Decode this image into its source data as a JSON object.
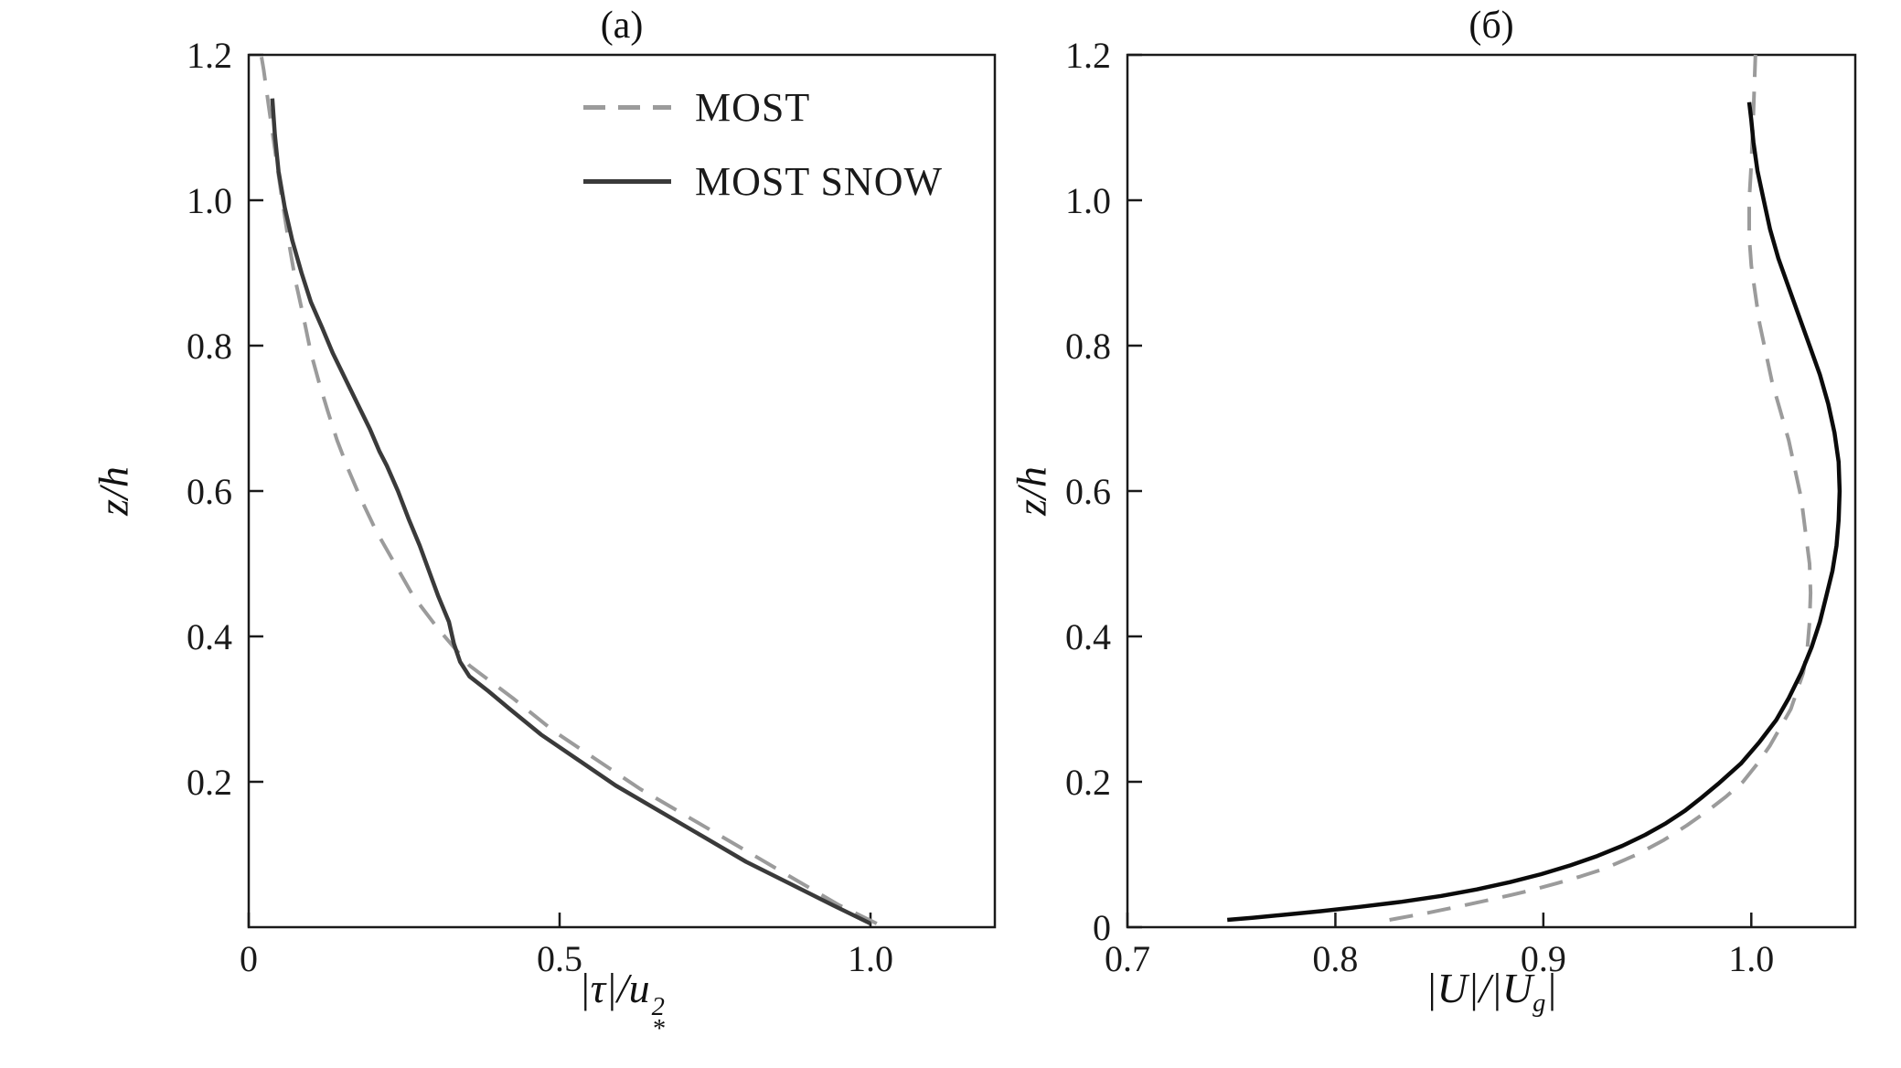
{
  "figure": {
    "background": "#ffffff",
    "frame_color": "#1a1a1a"
  },
  "chart_data": [
    {
      "type": "line",
      "title": "(a)",
      "xlabel": "|τ|/u*²",
      "xlabel_parts": {
        "pre": "|τ|/",
        "base": "u",
        "sup": "2",
        "sub": "*"
      },
      "ylabel": "z/h",
      "xlim": [
        0,
        1.2
      ],
      "ylim": [
        0,
        1.2
      ],
      "grid": false,
      "legend_position": "upper center inside",
      "xticks": [
        {
          "v": 0,
          "label": "0"
        },
        {
          "v": 0.5,
          "label": "0.5"
        },
        {
          "v": 1.0,
          "label": "1.0"
        }
      ],
      "yticks": [
        {
          "v": 0.2,
          "label": "0.2"
        },
        {
          "v": 0.4,
          "label": "0.4"
        },
        {
          "v": 0.6,
          "label": "0.6"
        },
        {
          "v": 0.8,
          "label": "0.8"
        },
        {
          "v": 1.0,
          "label": "1.0"
        },
        {
          "v": 1.2,
          "label": "1.2"
        }
      ],
      "series": [
        {
          "name": "MOST",
          "style": "dashed",
          "color": "#9b9b9b",
          "x": [
            1.01,
            0.95,
            0.87,
            0.79,
            0.71,
            0.63,
            0.56,
            0.49,
            0.425,
            0.355,
            0.305,
            0.265,
            0.235,
            0.205,
            0.18,
            0.16,
            0.142,
            0.127,
            0.113,
            0.1,
            0.088,
            0.075,
            0.063,
            0.052,
            0.042,
            0.032,
            0.024,
            0.02
          ],
          "y": [
            0.005,
            0.03,
            0.07,
            0.11,
            0.15,
            0.19,
            0.23,
            0.27,
            0.315,
            0.36,
            0.41,
            0.455,
            0.5,
            0.545,
            0.59,
            0.63,
            0.67,
            0.71,
            0.75,
            0.79,
            0.84,
            0.89,
            0.95,
            1.01,
            1.07,
            1.13,
            1.18,
            1.2
          ]
        },
        {
          "name": "MOST SNOW",
          "style": "solid",
          "color": "#3a3a3a",
          "x": [
            1.0,
            0.94,
            0.87,
            0.8,
            0.73,
            0.66,
            0.59,
            0.53,
            0.47,
            0.42,
            0.385,
            0.355,
            0.34,
            0.33,
            0.322,
            0.305,
            0.29,
            0.275,
            0.258,
            0.24,
            0.222,
            0.21,
            0.195,
            0.175,
            0.155,
            0.135,
            0.118,
            0.1,
            0.085,
            0.07,
            0.058,
            0.048,
            0.042,
            0.038
          ],
          "y": [
            0.005,
            0.03,
            0.06,
            0.09,
            0.125,
            0.16,
            0.195,
            0.23,
            0.265,
            0.3,
            0.325,
            0.345,
            0.365,
            0.39,
            0.42,
            0.455,
            0.49,
            0.525,
            0.56,
            0.6,
            0.635,
            0.655,
            0.685,
            0.72,
            0.755,
            0.79,
            0.825,
            0.86,
            0.9,
            0.945,
            0.99,
            1.04,
            1.09,
            1.14
          ]
        }
      ]
    },
    {
      "type": "line",
      "title": "(б)",
      "xlabel": "|U|/|Ug|",
      "xlabel_parts": {
        "p1": "|",
        "u1": "U",
        "p2": "|/|",
        "u2": "U",
        "sub": "g",
        "p3": "|"
      },
      "ylabel": "z/h",
      "xlim": [
        0.7,
        1.05
      ],
      "ylim": [
        0,
        1.2
      ],
      "grid": false,
      "legend_position": "none",
      "xticks": [
        {
          "v": 0.7,
          "label": "0.7"
        },
        {
          "v": 0.8,
          "label": "0.8"
        },
        {
          "v": 0.9,
          "label": "0.9"
        },
        {
          "v": 1.0,
          "label": "1.0"
        }
      ],
      "yticks": [
        {
          "v": 0,
          "label": "0"
        },
        {
          "v": 0.2,
          "label": "0.2"
        },
        {
          "v": 0.4,
          "label": "0.4"
        },
        {
          "v": 0.6,
          "label": "0.6"
        },
        {
          "v": 0.8,
          "label": "0.8"
        },
        {
          "v": 1.0,
          "label": "1.0"
        },
        {
          "v": 1.2,
          "label": "1.2"
        }
      ],
      "series": [
        {
          "name": "MOST",
          "style": "dashed",
          "color": "#9b9b9b",
          "x": [
            0.826,
            0.845,
            0.862,
            0.878,
            0.893,
            0.906,
            0.918,
            0.929,
            0.945,
            0.958,
            0.969,
            0.979,
            0.988,
            0.996,
            1.003,
            1.009,
            1.014,
            1.019,
            1.022,
            1.025,
            1.027,
            1.028,
            1.0285,
            1.028,
            1.026,
            1.024,
            1.021,
            1.018,
            1.014,
            1.01,
            1.007,
            1.004,
            1.002,
            1.0,
            0.999,
            0.999,
            1.0,
            1.001,
            1.002
          ],
          "y": [
            0.01,
            0.02,
            0.03,
            0.04,
            0.05,
            0.06,
            0.07,
            0.08,
            0.1,
            0.12,
            0.14,
            0.16,
            0.18,
            0.2,
            0.225,
            0.25,
            0.275,
            0.3,
            0.325,
            0.35,
            0.385,
            0.42,
            0.46,
            0.5,
            0.545,
            0.59,
            0.63,
            0.67,
            0.71,
            0.75,
            0.79,
            0.83,
            0.87,
            0.91,
            0.95,
            1.0,
            1.05,
            1.12,
            1.2
          ]
        },
        {
          "name": "MOST SNOW",
          "style": "solid",
          "color": "#0b0b0b",
          "x": [
            0.748,
            0.76,
            0.775,
            0.793,
            0.812,
            0.832,
            0.851,
            0.868,
            0.884,
            0.899,
            0.913,
            0.926,
            0.938,
            0.949,
            0.959,
            0.968,
            0.976,
            0.984,
            0.995,
            1.004,
            1.012,
            1.018,
            1.024,
            1.029,
            1.033,
            1.036,
            1.039,
            1.041,
            1.042,
            1.0425,
            1.042,
            1.04,
            1.037,
            1.033,
            1.028,
            1.023,
            1.018,
            1.013,
            1.009,
            1.006,
            1.003,
            1.001,
            1.0,
            0.999
          ],
          "y": [
            0.01,
            0.013,
            0.017,
            0.022,
            0.028,
            0.035,
            0.043,
            0.052,
            0.062,
            0.073,
            0.085,
            0.098,
            0.112,
            0.127,
            0.143,
            0.16,
            0.178,
            0.197,
            0.225,
            0.255,
            0.285,
            0.315,
            0.35,
            0.385,
            0.42,
            0.455,
            0.49,
            0.525,
            0.56,
            0.6,
            0.64,
            0.68,
            0.72,
            0.76,
            0.8,
            0.84,
            0.88,
            0.92,
            0.96,
            1.0,
            1.04,
            1.08,
            1.11,
            1.135
          ]
        }
      ]
    }
  ]
}
